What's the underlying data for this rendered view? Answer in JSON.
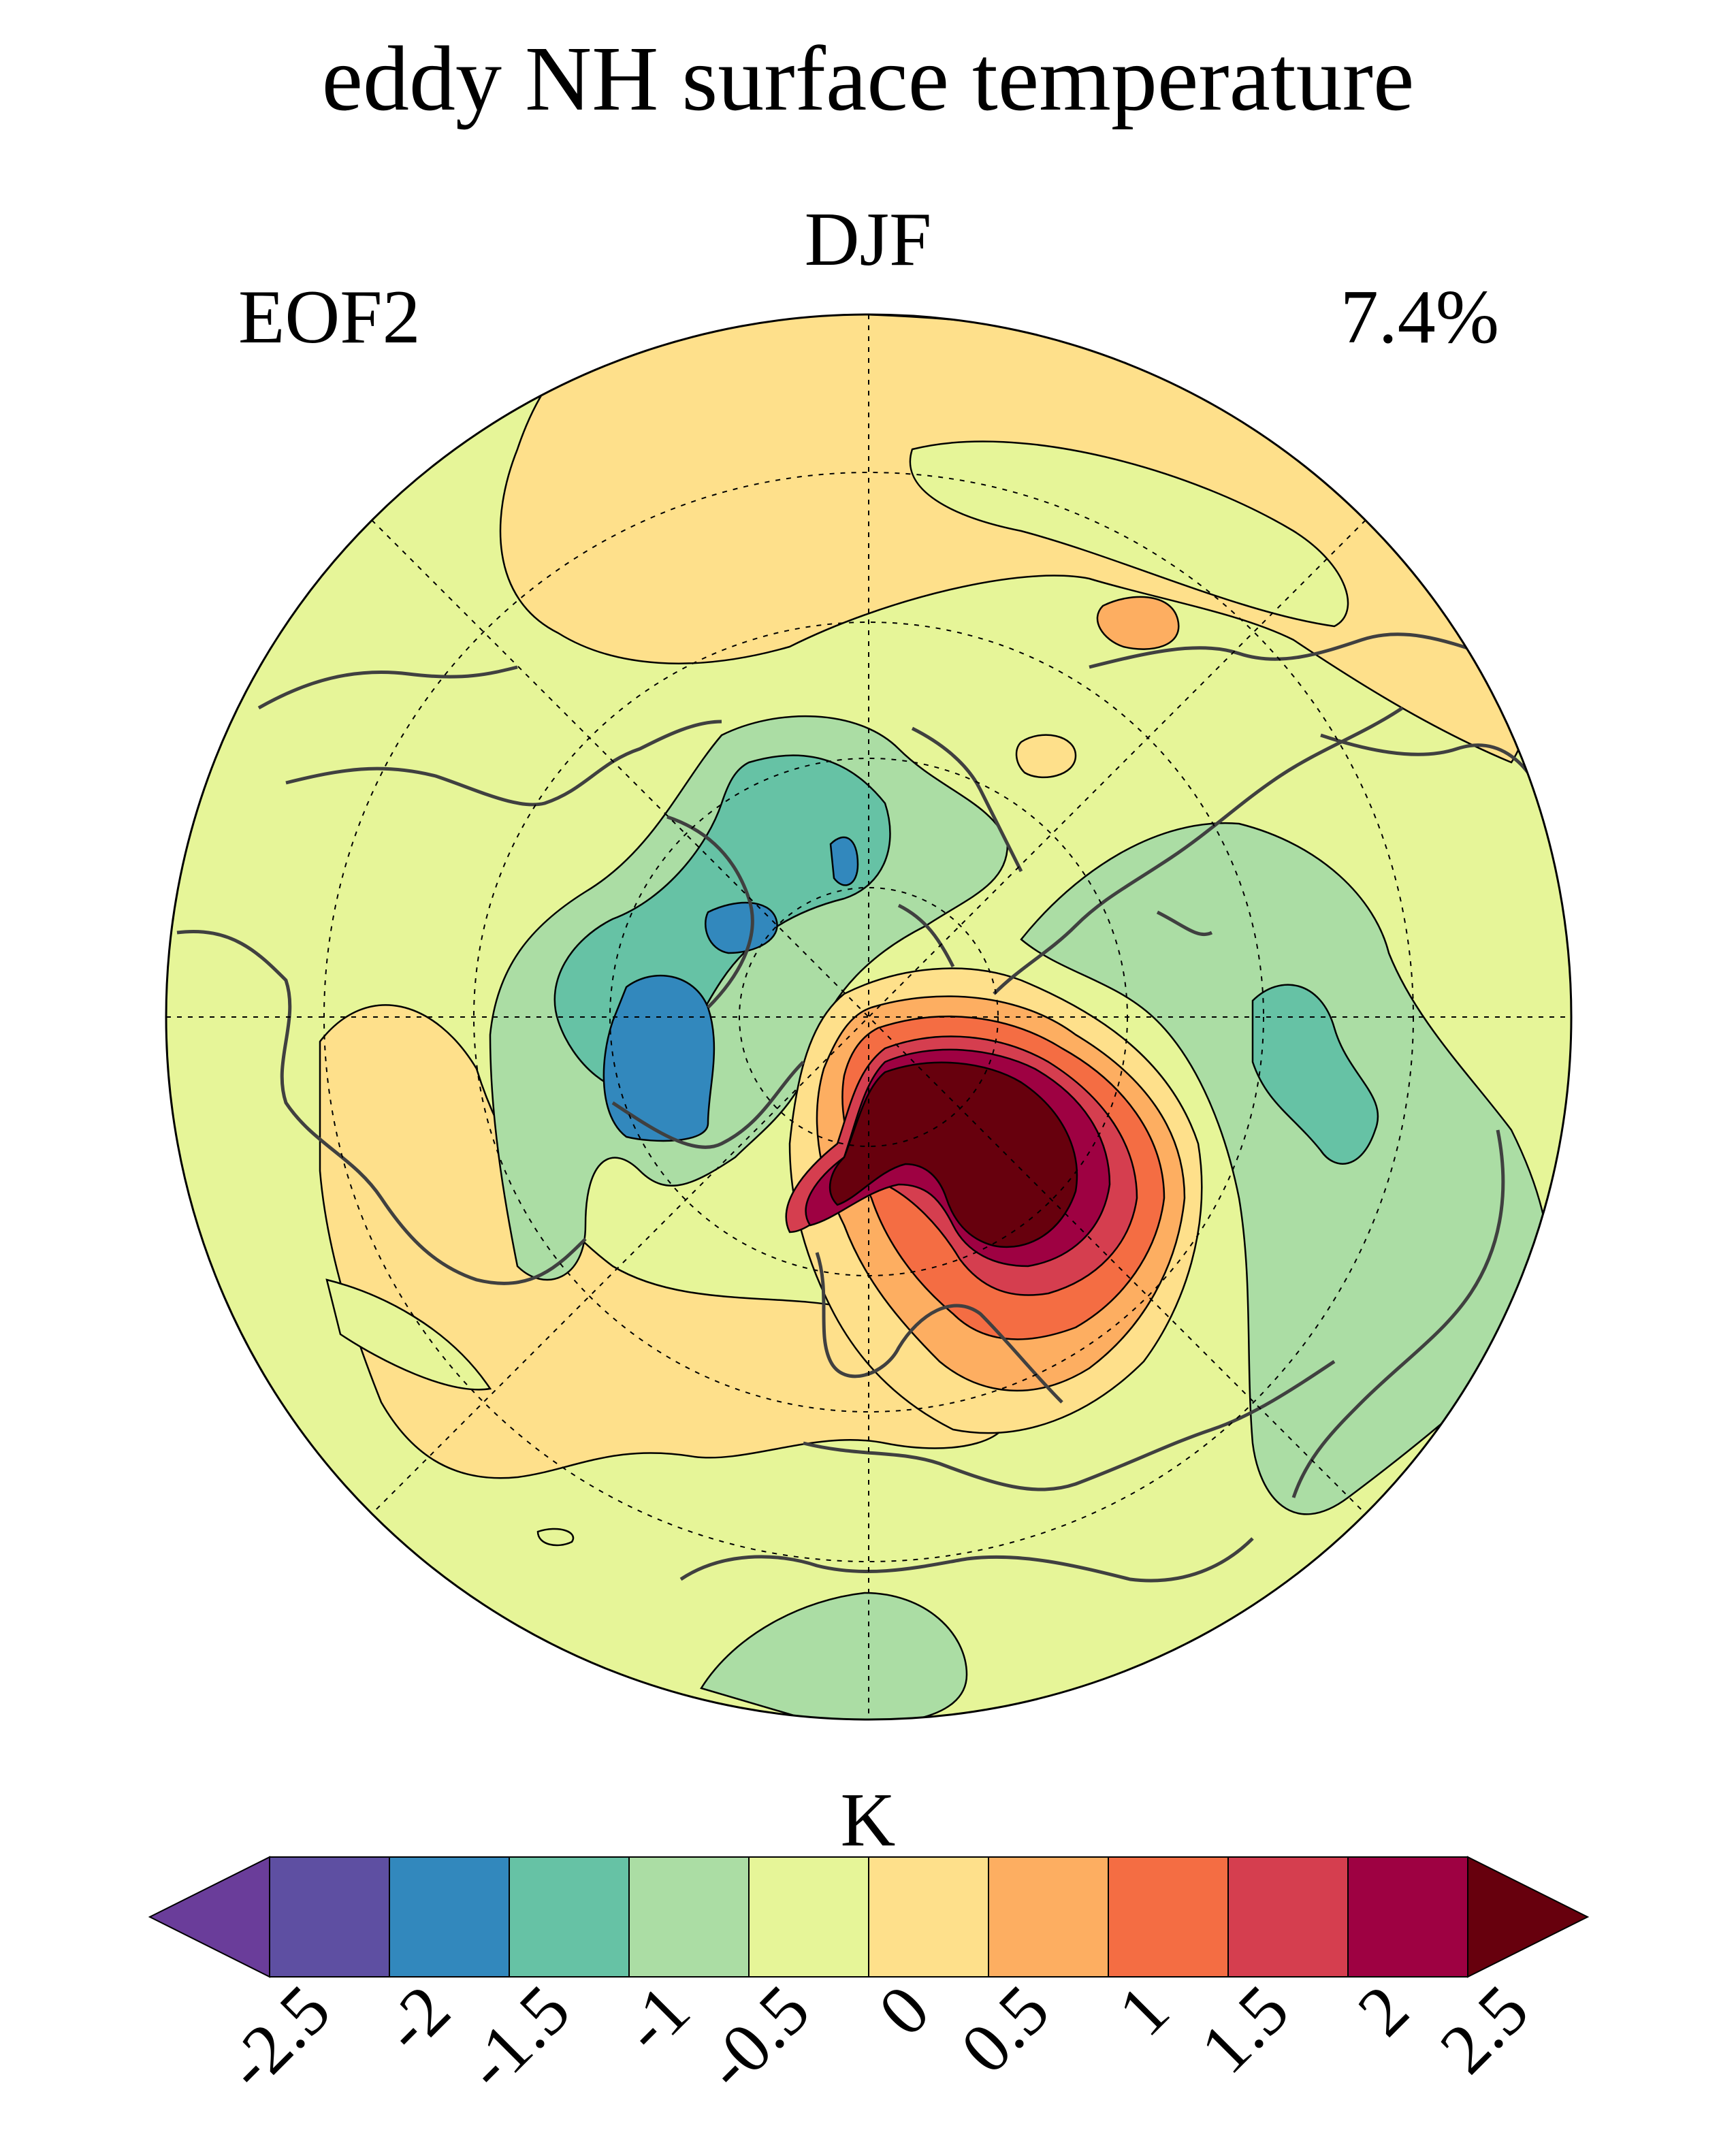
{
  "figure": {
    "title": "eddy NH surface temperature",
    "season": "DJF",
    "mode": "EOF2",
    "variance_explained": "7.4%"
  },
  "colorbar": {
    "unit": "K",
    "ticks": [
      "-2.5",
      "-2",
      "-1.5",
      "-1",
      "-0.5",
      "0",
      "0.5",
      "1",
      "1.5",
      "2",
      "2.5"
    ],
    "colors": [
      "#5e4fa2",
      "#3288bd",
      "#66c2a5",
      "#abdda4",
      "#e6f598",
      "#fee08b",
      "#fdae61",
      "#f46d43",
      "#d53e4f",
      "#9e0142"
    ],
    "extend_low_color": "#6a3d9a",
    "extend_high_color": "#67000d"
  },
  "map": {
    "projection": "north-polar-stereographic",
    "background_color": "#e6f598",
    "graticule": "dashed",
    "coastlines": "dark-gray"
  }
}
